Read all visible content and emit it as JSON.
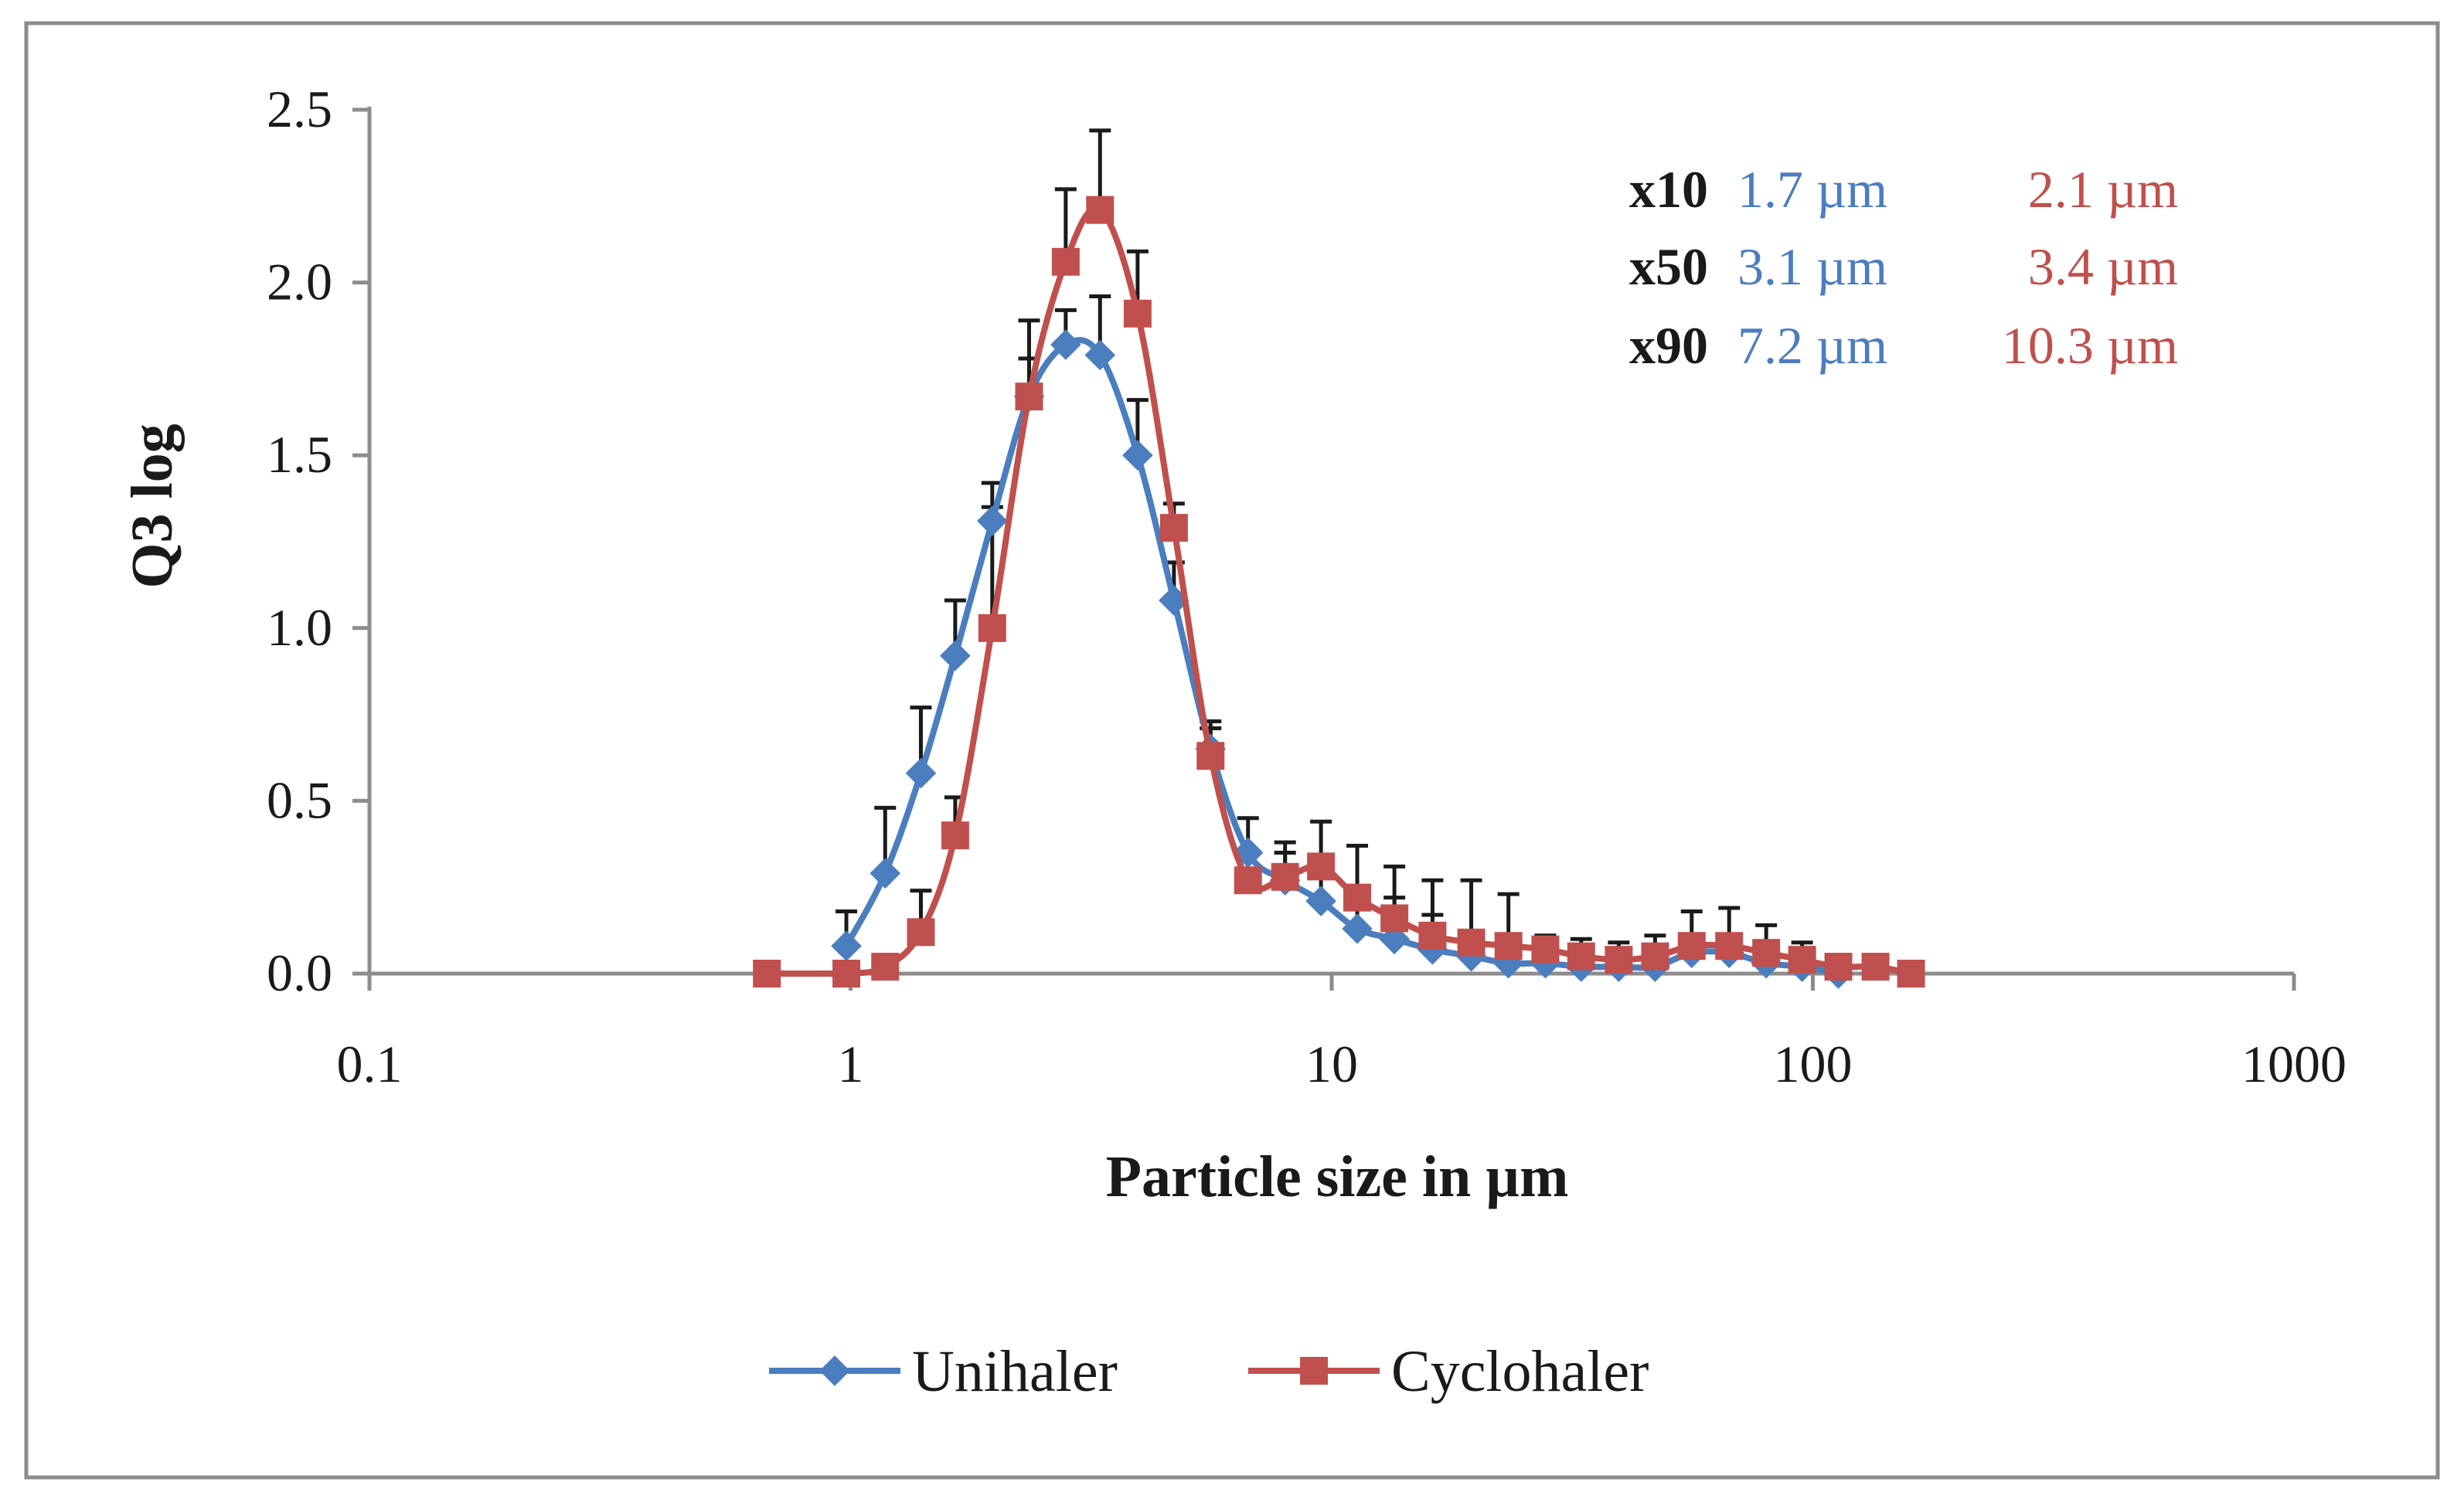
{
  "chart_data": {
    "type": "line",
    "title": "",
    "xlabel": "Particle size in µm",
    "ylabel": "Q3 log",
    "xscale": "log",
    "xlim": [
      0.1,
      1000
    ],
    "ylim": [
      0,
      2.5
    ],
    "x_ticks": [
      0.1,
      1,
      10,
      100,
      1000
    ],
    "x_tick_labels": [
      "0.1",
      "1",
      "10",
      "100",
      "1000"
    ],
    "y_ticks": [
      0,
      0.5,
      1.0,
      1.5,
      2.0,
      2.5
    ],
    "y_tick_labels": [
      "0.0",
      "0.5",
      "1.0",
      "1.5",
      "2.0",
      "2.5"
    ],
    "grid": false,
    "legend_position": "bottom",
    "series": [
      {
        "name": "Unihaler",
        "color": "#4a7ebf",
        "marker": "diamond",
        "x": [
          0.98,
          1.18,
          1.4,
          1.65,
          1.97,
          2.35,
          2.8,
          3.3,
          3.95,
          4.7,
          5.6,
          6.7,
          8.0,
          9.5,
          11.3,
          13.5,
          16.2,
          19.5,
          23.3,
          27.8,
          33.0,
          39.5,
          47.0,
          56.0,
          67.0,
          80.0,
          95.0,
          113.0
        ],
        "y": [
          0.08,
          0.29,
          0.58,
          0.92,
          1.31,
          1.67,
          1.82,
          1.79,
          1.5,
          1.08,
          0.65,
          0.35,
          0.27,
          0.21,
          0.13,
          0.1,
          0.07,
          0.05,
          0.03,
          0.03,
          0.02,
          0.02,
          0.02,
          0.06,
          0.06,
          0.03,
          0.02,
          0.0
        ],
        "error": [
          0.1,
          0.19,
          0.19,
          0.16,
          0.11,
          0.11,
          0.1,
          0.17,
          0.16,
          0.11,
          0.08,
          0.1,
          0.08,
          0.12,
          0.1,
          0.12,
          0.1,
          0.06,
          0.04,
          0.04,
          0.03,
          0.03,
          0.03,
          0.04,
          0.04,
          0.04,
          0.02,
          0.02
        ]
      },
      {
        "name": "Cyclohaler",
        "color": "#c0504d",
        "marker": "square",
        "x": [
          0.67,
          0.98,
          1.18,
          1.4,
          1.65,
          1.97,
          2.35,
          2.8,
          3.3,
          3.95,
          4.7,
          5.6,
          6.7,
          8.0,
          9.5,
          11.3,
          13.5,
          16.2,
          19.5,
          23.3,
          27.8,
          33.0,
          39.5,
          47.0,
          56.0,
          67.0,
          80.0,
          95.0,
          113.0,
          135.0,
          160.0
        ],
        "y": [
          0.0,
          0.0,
          0.02,
          0.12,
          0.4,
          1.0,
          1.67,
          2.06,
          2.21,
          1.91,
          1.29,
          0.63,
          0.27,
          0.28,
          0.31,
          0.22,
          0.16,
          0.11,
          0.09,
          0.08,
          0.07,
          0.05,
          0.04,
          0.05,
          0.08,
          0.08,
          0.06,
          0.04,
          0.02,
          0.02,
          0.0
        ],
        "error": [
          0.0,
          0.0,
          0.02,
          0.12,
          0.11,
          0.35,
          0.22,
          0.21,
          0.23,
          0.18,
          0.07,
          0.08,
          0.08,
          0.1,
          0.13,
          0.15,
          0.15,
          0.16,
          0.18,
          0.15,
          0.04,
          0.05,
          0.05,
          0.06,
          0.1,
          0.11,
          0.08,
          0.05,
          0.02,
          0.02,
          0.0
        ]
      }
    ]
  },
  "annotation": {
    "rows": [
      {
        "label": "x10",
        "unihaler": "1.7 µm",
        "cyclohaler": "2.1 µm"
      },
      {
        "label": "x50",
        "unihaler": "3.1 µm",
        "cyclohaler": "3.4 µm"
      },
      {
        "label": "x90",
        "unihaler": "7.2 µm",
        "cyclohaler": "10.3 µm"
      }
    ]
  },
  "colors": {
    "unihaler": "#4a7ebf",
    "cyclohaler": "#c0504d",
    "axis": "#8c8c8c",
    "frame": "#8c8c8c",
    "error_bar": "#1a1a1a"
  }
}
